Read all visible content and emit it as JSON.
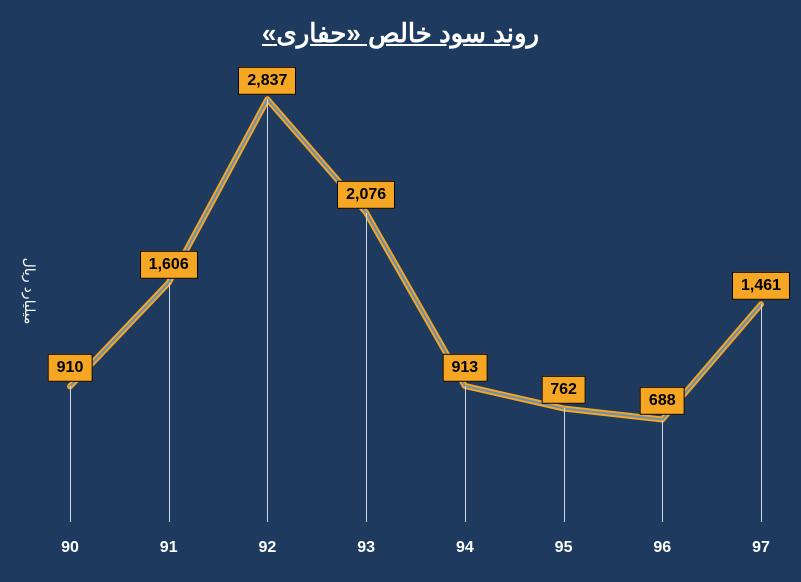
{
  "chart": {
    "type": "line",
    "title": "روند سود خالص «حفاری»",
    "title_fontsize": 26,
    "title_color": "#ffffff",
    "ylabel": "میلیارد ریال",
    "ylabel_fontsize": 14,
    "background_color": "#1e3a5f",
    "line_color_outer": "#f5a623",
    "line_color_inner": "#6a8fb5",
    "line_width_outer": 6,
    "line_width_inner": 2,
    "drop_line_color": "#cfd8e3",
    "label_bg": "#f5a623",
    "label_text_color": "#000000",
    "label_border_color": "#000000",
    "label_fontsize": 16,
    "xtick_color": "#ffffff",
    "xtick_fontsize": 16,
    "ylim": [
      0,
      3000
    ],
    "categories": [
      "90",
      "91",
      "92",
      "93",
      "94",
      "95",
      "96",
      "97"
    ],
    "values": [
      910,
      1606,
      2837,
      2076,
      913,
      762,
      688,
      1461
    ],
    "labels": [
      "910",
      "1,606",
      "2,837",
      "2,076",
      "913",
      "762",
      "688",
      "1,461"
    ]
  }
}
